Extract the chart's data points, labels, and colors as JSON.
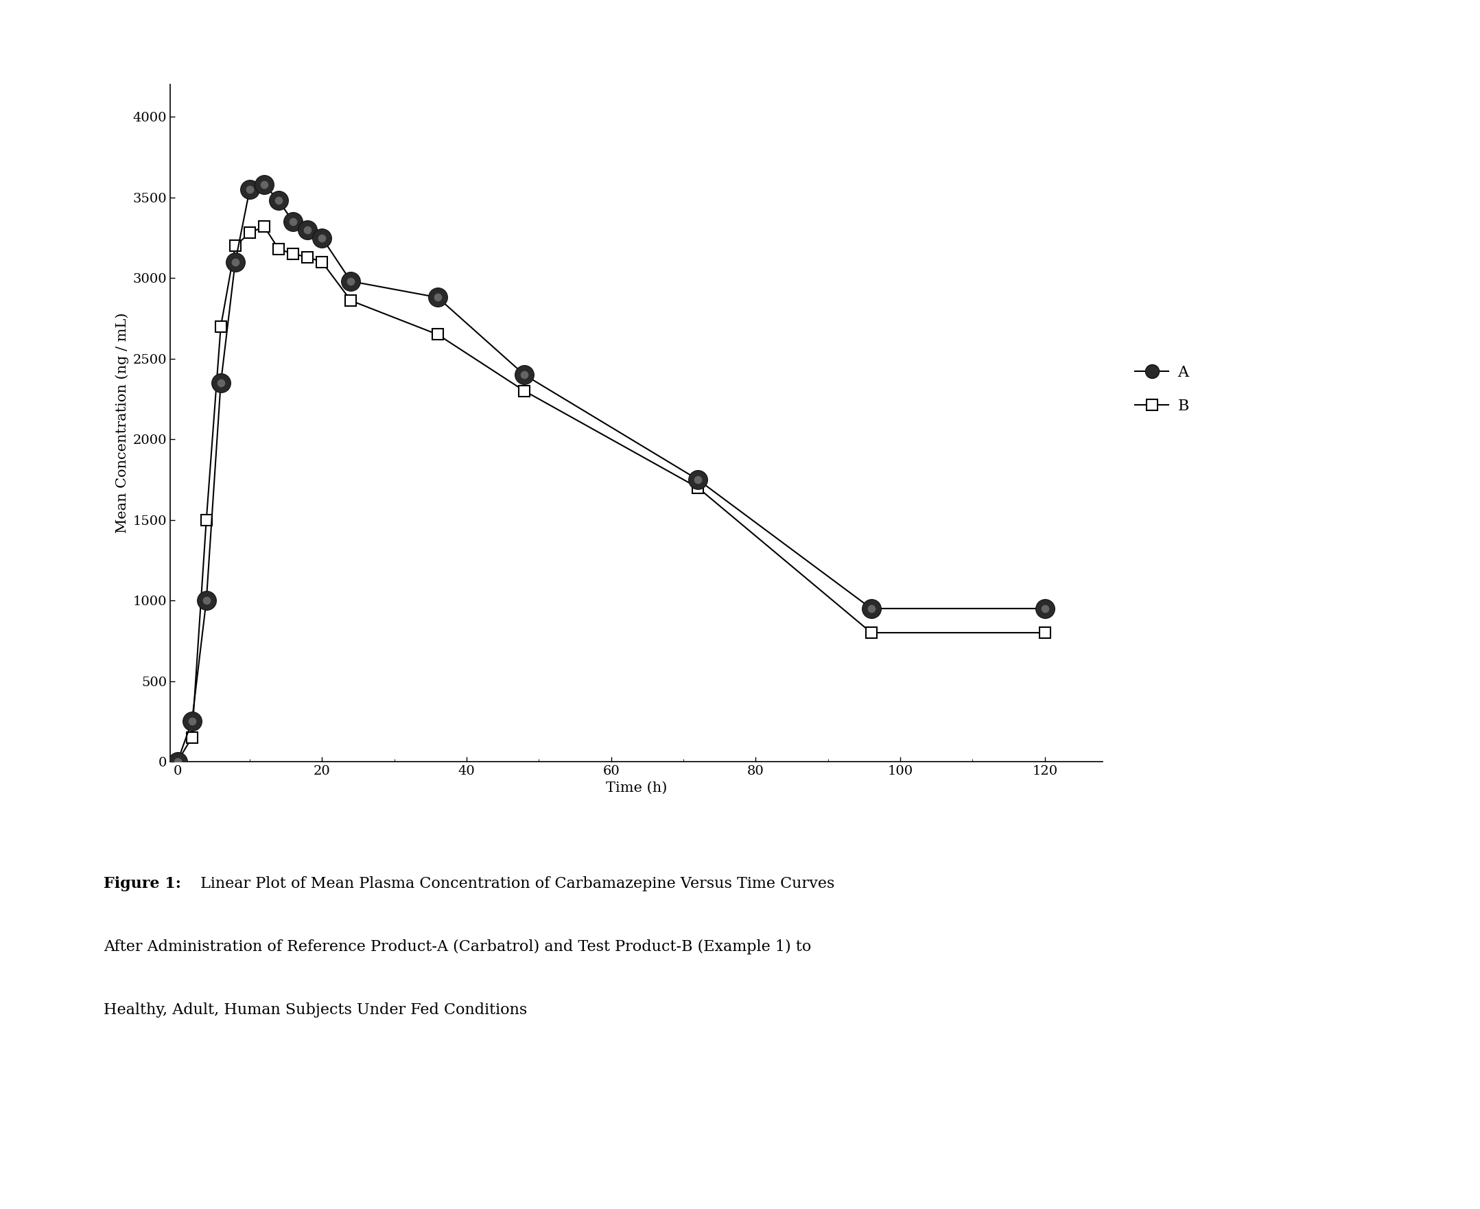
{
  "series_A_x": [
    0,
    2,
    4,
    6,
    8,
    10,
    12,
    14,
    16,
    18,
    20,
    24,
    36,
    48,
    72,
    96,
    120
  ],
  "series_A_y": [
    0,
    250,
    1000,
    2350,
    3100,
    3550,
    3580,
    3480,
    3350,
    3300,
    3250,
    2980,
    2880,
    2400,
    1750,
    950,
    950
  ],
  "series_B_x": [
    0,
    2,
    4,
    6,
    8,
    10,
    12,
    14,
    16,
    18,
    20,
    24,
    36,
    48,
    72,
    96,
    120
  ],
  "series_B_y": [
    0,
    150,
    1500,
    2700,
    3200,
    3280,
    3320,
    3180,
    3150,
    3130,
    3100,
    2860,
    2650,
    2300,
    1700,
    800,
    800
  ],
  "xlabel": "Time (h)",
  "ylabel": "Mean Concentration (ng / mL)",
  "xlim": [
    -1,
    128
  ],
  "ylim": [
    0,
    4200
  ],
  "xticks": [
    0,
    20,
    40,
    60,
    80,
    100,
    120
  ],
  "yticks": [
    0,
    500,
    1000,
    1500,
    2000,
    2500,
    3000,
    3500,
    4000
  ],
  "legend_A": "A",
  "legend_B": "B",
  "background_color": "#ffffff",
  "line_color": "#000000",
  "marker_size_A": 20,
  "marker_size_B": 11,
  "line_width": 1.5,
  "axis_fontsize": 15,
  "tick_fontsize": 14,
  "legend_fontsize": 16,
  "caption_fontsize": 16,
  "caption_bold": "Figure 1:",
  "caption_line1": " Linear Plot of Mean Plasma Concentration of Carbamazepine Versus Time Curves",
  "caption_line2": "After Administration of Reference Product-A (Carbatrol) and Test Product-B (Example 1) to",
  "caption_line3": "Healthy, Adult, Human Subjects Under Fed Conditions"
}
